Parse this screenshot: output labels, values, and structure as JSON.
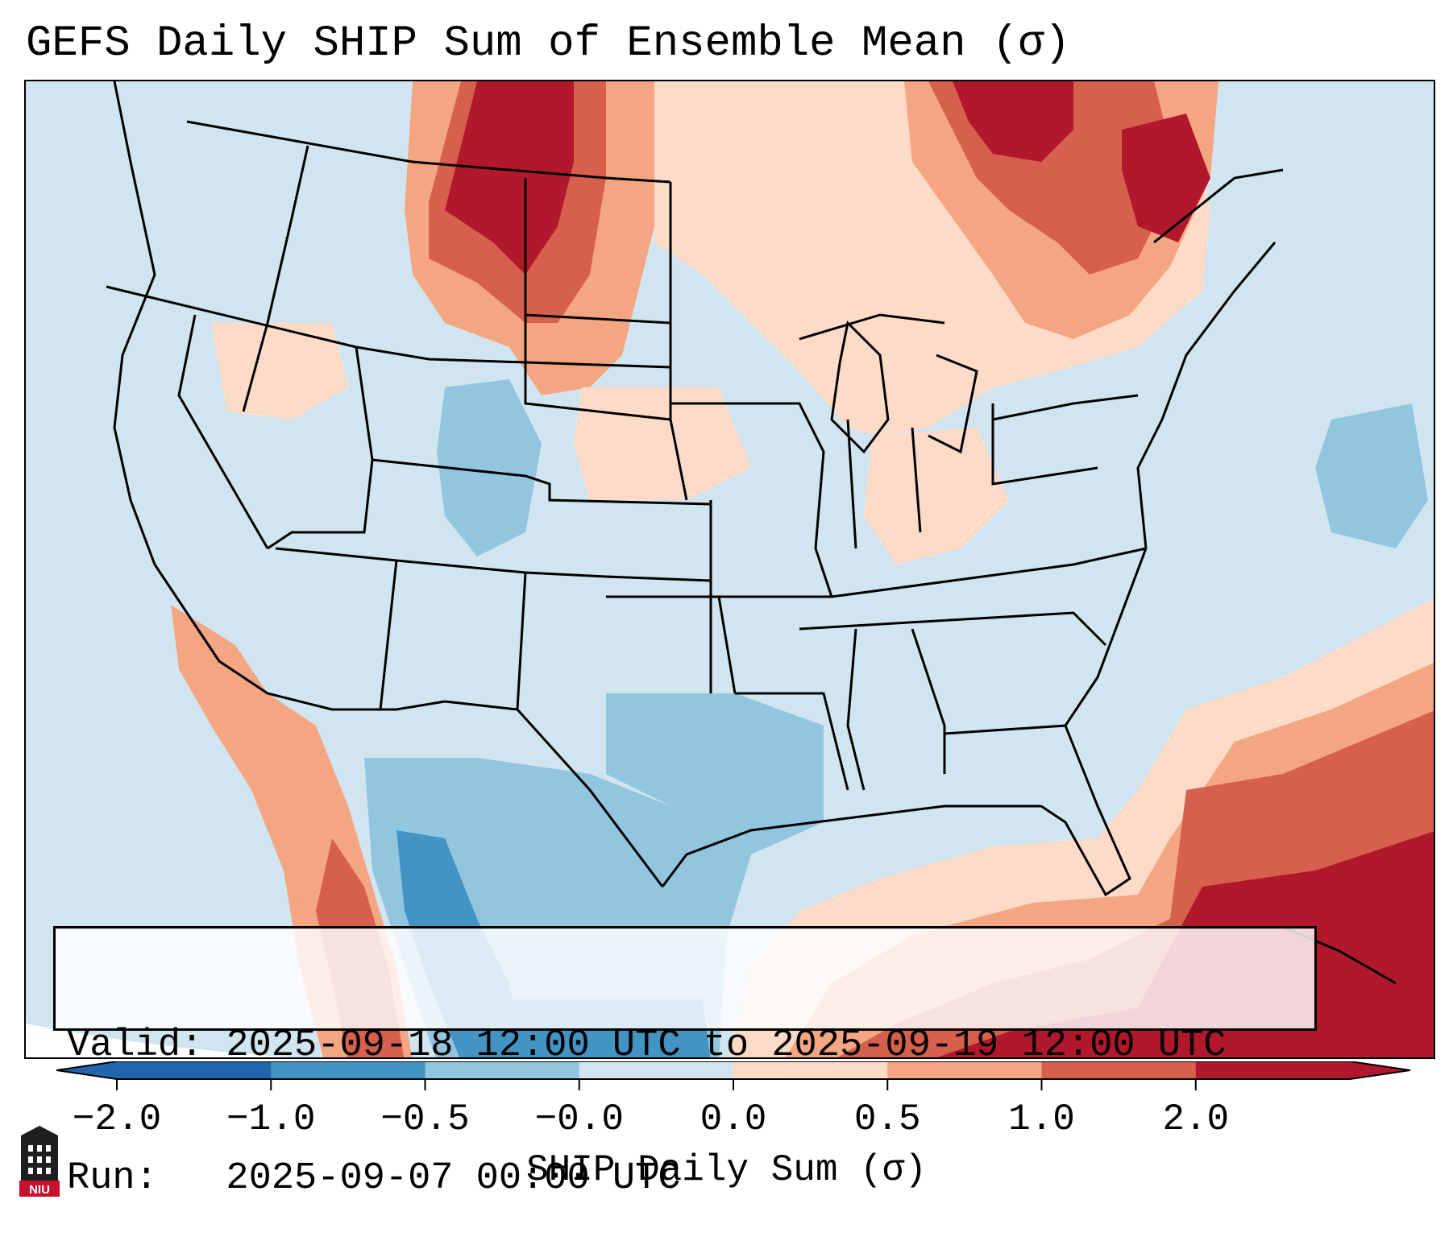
{
  "title": "GEFS Daily SHIP Sum of Ensemble Mean (σ)",
  "info": {
    "valid_line": "Valid: 2025-09-18 12:00 UTC to 2025-09-19 12:00 UTC",
    "run_line": "Run:   2025-09-07 00:00 UTC"
  },
  "colorbar": {
    "label": "SHIP Daily Sum (σ)",
    "ticks": [
      "−2.0",
      "−1.0",
      "−0.5",
      "−0.0",
      "0.0",
      "0.5",
      "1.0",
      "2.0"
    ],
    "colors": [
      "#2166ac",
      "#4393c3",
      "#92c5de",
      "#d1e5f0",
      "#fddbc7",
      "#f4a582",
      "#d6604d",
      "#b2182b"
    ],
    "extend": "both"
  },
  "map": {
    "region": "Continental United States",
    "background_color": "#d1e5f0",
    "outside_domain_color": "#ffffff"
  },
  "logo": {
    "text": "NIU",
    "icon": "niu-logo-icon"
  }
}
